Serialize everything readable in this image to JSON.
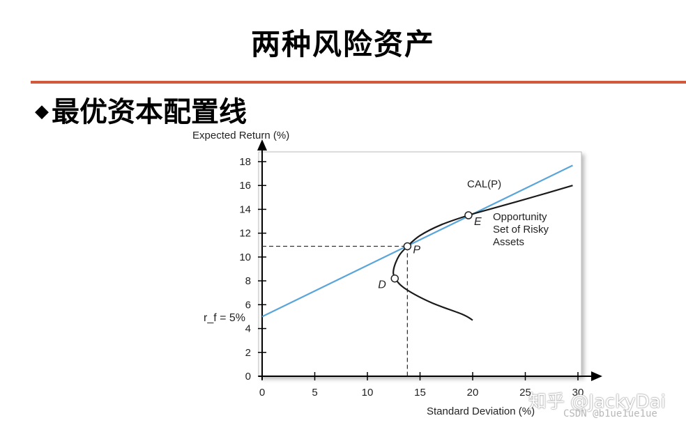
{
  "slide": {
    "title": "两种风险资产",
    "bullet_text": "最优资本配置线",
    "bullet_symbol": "◆"
  },
  "watermark": {
    "main": "知乎 @JackyDai",
    "sub": "CSDN @b1ue1ue1ue"
  },
  "chart_data": {
    "type": "line",
    "ylabel": "Expected Return (%)",
    "xlabel": "Standard Deviation (%)",
    "x_ticks": [
      0,
      5,
      10,
      15,
      20,
      25,
      30
    ],
    "y_ticks": [
      0,
      2,
      4,
      6,
      8,
      10,
      12,
      14,
      16,
      18
    ],
    "xlim": [
      0,
      30
    ],
    "ylim": [
      0,
      18
    ],
    "grid": false,
    "rf_label": "r_f = 5%",
    "cal": {
      "label": "CAL(P)",
      "intercept": 5,
      "slope": 0.43,
      "x_end": 29.5,
      "color": "#5aa5d9"
    },
    "opportunity_set": {
      "label": [
        "Opportunity",
        "Set of Risky",
        "Assets"
      ],
      "color": "#1a1a1a",
      "points": [
        [
          29.5,
          16.0
        ],
        [
          26,
          15.1
        ],
        [
          22,
          14.1
        ],
        [
          19.6,
          13.5
        ],
        [
          17,
          12.7
        ],
        [
          15,
          11.8
        ],
        [
          13.8,
          10.9
        ],
        [
          13,
          10.1
        ],
        [
          12.5,
          9.0
        ],
        [
          12.6,
          8.3
        ],
        [
          13.5,
          7.4
        ],
        [
          16,
          6.2
        ],
        [
          19,
          5.2
        ],
        [
          20,
          4.7
        ]
      ]
    },
    "points": [
      {
        "label": "P",
        "x": 13.8,
        "y": 10.9
      },
      {
        "label": "E",
        "x": 19.6,
        "y": 13.5
      },
      {
        "label": "D",
        "x": 12.6,
        "y": 8.2
      }
    ],
    "guides": {
      "x": 13.8,
      "y": 10.9
    }
  }
}
